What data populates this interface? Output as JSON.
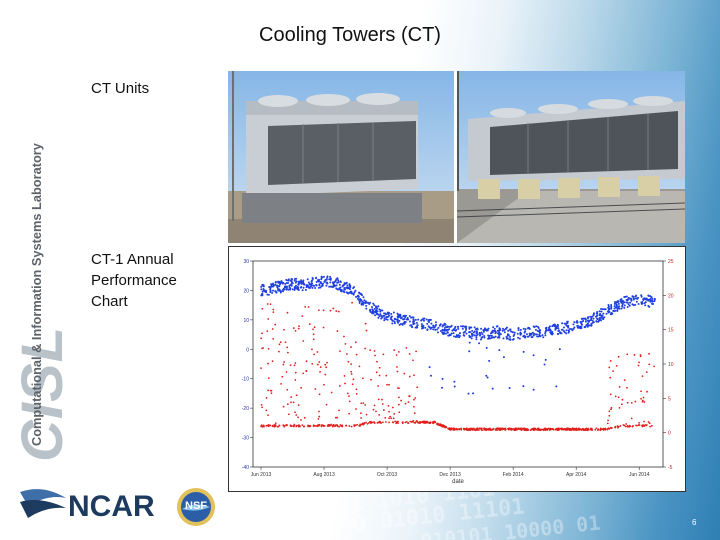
{
  "slide": {
    "title": "Cooling Towers (CT)",
    "label_units": "CT Units",
    "label_chart_lines": [
      "CT-1 Annual",
      "Performance",
      "Chart"
    ],
    "page_number": "6"
  },
  "branding": {
    "cisl_logo_text": "CISL",
    "cisl_full_name": "Computational & Information Systems Laboratory",
    "ncar_logo_text": "NCAR",
    "nsf_logo_text": "NSF"
  },
  "colors": {
    "accent_blue": "#2f7fb4",
    "cisl_gray": "#b9c2c9",
    "ncar_navy": "#1d3a5f",
    "series_blue": "#1f3fe0",
    "series_red": "#e0201c"
  },
  "chart_data": {
    "type": "scatter",
    "xlabel": "date",
    "ylabel_left": "",
    "ylabel_right": "",
    "x_ticks": [
      "Jun 2013",
      "Aug 2013",
      "Oct 2013",
      "Dec 2013",
      "Feb 2014",
      "Apr 2014",
      "Jun 2014"
    ],
    "left_axis": {
      "ylim": [
        -40,
        30
      ],
      "ticks": [
        30,
        20,
        10,
        0,
        -10,
        -20,
        -30,
        -40
      ]
    },
    "right_axis": {
      "ylim": [
        -5,
        25
      ],
      "ticks": [
        25,
        20,
        15,
        10,
        5,
        0,
        -5
      ]
    },
    "series": [
      {
        "name": "",
        "axis": "left",
        "x_month": [
          0,
          0.5,
          1,
          1.5,
          2,
          2.5,
          3,
          3.5,
          4,
          4.5,
          5,
          5.5,
          6,
          6.5,
          7,
          7.5,
          8,
          8.5,
          9,
          9.5,
          10,
          10.5,
          11,
          11.5,
          12,
          12.5
        ],
        "y": [
          20,
          21,
          22,
          22,
          23,
          22,
          19,
          14,
          11,
          10,
          9,
          8,
          6,
          6,
          5,
          6,
          5,
          6,
          6,
          7,
          8,
          10,
          13,
          16,
          17,
          16
        ]
      },
      {
        "name": "",
        "axis": "right",
        "x_month": [
          0,
          0.5,
          1,
          1.5,
          2,
          2.5,
          3,
          3.5,
          4,
          4.5,
          5,
          5.5,
          6,
          6.5,
          7,
          7.5,
          8,
          8.5,
          9,
          9.5,
          10,
          10.5,
          11,
          11.5,
          12,
          12.5
        ],
        "y": [
          1,
          1,
          1,
          1,
          1,
          1,
          1,
          1.5,
          1.5,
          1.5,
          1.5,
          1.5,
          0.5,
          0.5,
          0.5,
          0.5,
          0.5,
          0.5,
          0.5,
          0.5,
          0.5,
          0.5,
          0.5,
          1,
          1,
          1
        ]
      }
    ]
  }
}
